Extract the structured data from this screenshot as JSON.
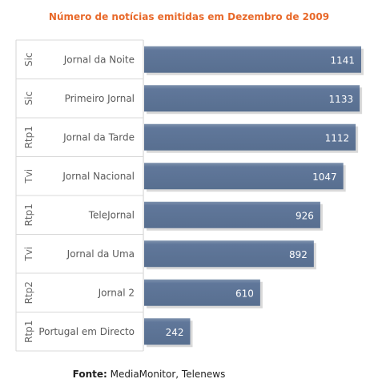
{
  "chart_data": {
    "type": "bar",
    "orientation": "horizontal",
    "title": "Número de notícias emitidas em Dezembro de 2009",
    "categories": [
      {
        "channel": "Sic",
        "program": "Jornal da Noite"
      },
      {
        "channel": "Sic",
        "program": "Primeiro Jornal"
      },
      {
        "channel": "Rtp1",
        "program": "Jornal da Tarde"
      },
      {
        "channel": "Tvi",
        "program": "Jornal Nacional"
      },
      {
        "channel": "Rtp1",
        "program": "TeleJornal"
      },
      {
        "channel": "Tvi",
        "program": "Jornal da Uma"
      },
      {
        "channel": "Rtp2",
        "program": "Jornal 2"
      },
      {
        "channel": "Rtp1",
        "program": "Portugal em Directo"
      }
    ],
    "values": [
      1141,
      1133,
      1112,
      1047,
      926,
      892,
      610,
      242
    ],
    "xlim": [
      0,
      1141
    ],
    "grid": false,
    "bar_color": "#5f7696",
    "label_color": "#ffffff"
  },
  "source": {
    "label": "Fonte:",
    "text": "MediaMonitor, Telenews"
  }
}
